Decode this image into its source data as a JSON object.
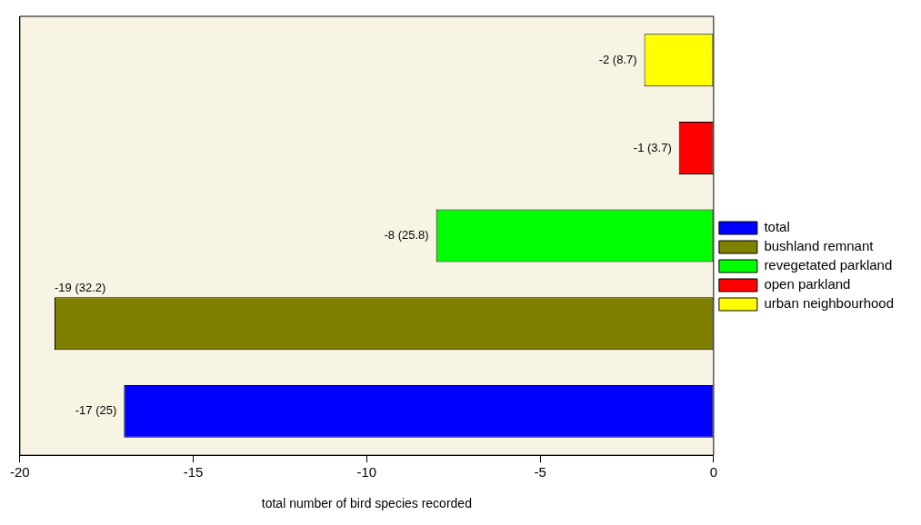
{
  "chart_data": {
    "type": "bar",
    "orientation": "horizontal",
    "xlabel": "total number of bird species recorded",
    "categories": [
      null,
      null,
      null,
      null,
      null
    ],
    "series": [
      {
        "name": "total",
        "color": "#0000ff",
        "values": [
          null,
          null,
          null,
          null,
          -17
        ],
        "value_labels": [
          null,
          null,
          null,
          null,
          "-17 (25)"
        ]
      },
      {
        "name": "bushland remnant",
        "color": "#808000",
        "values": [
          null,
          null,
          null,
          -19,
          null
        ],
        "value_labels": [
          null,
          null,
          null,
          "-19 (32.2)",
          null
        ]
      },
      {
        "name": "revegetated parkland",
        "color": "#00ff00",
        "values": [
          null,
          null,
          -8,
          null,
          null
        ],
        "value_labels": [
          null,
          null,
          "-8 (25.8)",
          null,
          null
        ]
      },
      {
        "name": "open parkland",
        "color": "#ff0000",
        "values": [
          null,
          -1,
          null,
          null,
          null
        ],
        "value_labels": [
          null,
          "-1 (3.7)",
          null,
          null,
          null
        ]
      },
      {
        "name": "urban neighbourhood",
        "color": "#ffff00",
        "values": [
          -2,
          null,
          null,
          null,
          null
        ],
        "value_labels": [
          "-2 (8.7)",
          null,
          null,
          null,
          null
        ]
      }
    ],
    "xlim": [
      -20,
      0
    ],
    "xticks": [
      -20,
      -15,
      -10,
      -5,
      0
    ],
    "grid": false,
    "legend": "right",
    "tick_labels": "x"
  }
}
